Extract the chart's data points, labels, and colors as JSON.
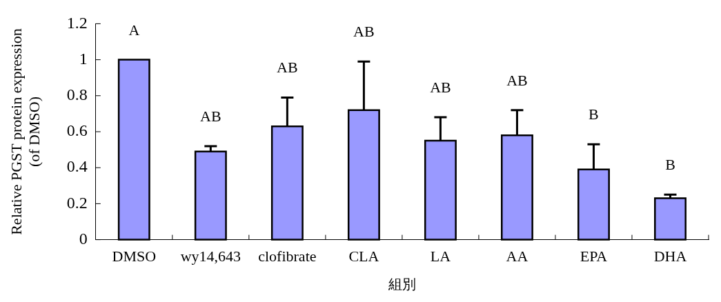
{
  "chart_data": {
    "type": "bar",
    "xlabel": "組別",
    "ylabel": "Relative PGST protein expression (of DMSO)",
    "categories": [
      "DMSO",
      "wy14,643",
      "clofibrate",
      "CLA",
      "LA",
      "AA",
      "EPA",
      "DHA"
    ],
    "values": [
      1.0,
      0.49,
      0.63,
      0.72,
      0.55,
      0.58,
      0.39,
      0.23
    ],
    "errors": [
      null,
      [
        0.49,
        0.52
      ],
      [
        0.63,
        0.79
      ],
      [
        0.72,
        0.99
      ],
      [
        0.55,
        0.68
      ],
      [
        0.58,
        0.72
      ],
      [
        0.39,
        0.53
      ],
      [
        0.23,
        0.25
      ]
    ],
    "color": "#9999ff",
    "ylim": [
      0,
      1.2
    ],
    "yticks": [
      0,
      0.2,
      0.4,
      0.6,
      0.8,
      1,
      1.2
    ],
    "grid": false,
    "legend": false,
    "annotations": [
      "A",
      "AB",
      "AB",
      "AB",
      "AB",
      "AB",
      "B",
      "B"
    ]
  }
}
